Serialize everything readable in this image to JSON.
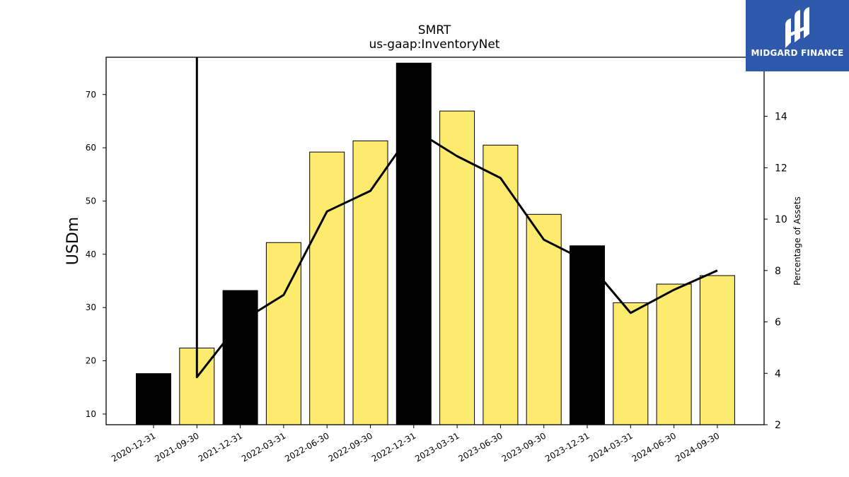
{
  "colors": {
    "bar_default": "#fdeb70",
    "bar_highlight": "#000000",
    "line": "#000000",
    "logo_bg": "#2f5aab"
  },
  "logo": {
    "text": "MIDGARD FINANCE",
    "icon": "midgard-logo-icon"
  },
  "chart_data": {
    "type": "bar",
    "title": "SMRT",
    "subtitle": "us-gaap:InventoryNet",
    "ylabel": "USDm",
    "y2label": "Percentage of Assets",
    "ylim": [
      8,
      77
    ],
    "y2lim": [
      2,
      16.3
    ],
    "yticks": [
      10,
      20,
      30,
      40,
      50,
      60,
      70
    ],
    "y2ticks": [
      2,
      4,
      6,
      8,
      10,
      12,
      14
    ],
    "categories": [
      "2020-12-31",
      "2021-09-30",
      "2021-12-31",
      "2022-03-31",
      "2022-06-30",
      "2022-09-30",
      "2022-12-31",
      "2023-03-31",
      "2023-06-30",
      "2023-09-30",
      "2023-12-31",
      "2024-03-31",
      "2024-06-30",
      "2024-09-30"
    ],
    "values": [
      17.6,
      22.4,
      33.2,
      42.2,
      59.2,
      61.3,
      75.9,
      66.9,
      60.5,
      47.5,
      41.6,
      30.9,
      34.4,
      36.0
    ],
    "highlight": [
      true,
      false,
      true,
      false,
      false,
      false,
      true,
      false,
      false,
      false,
      true,
      false,
      false,
      false
    ],
    "series": [
      {
        "type": "line",
        "axis": "right",
        "values": [
          null,
          3.85,
          6.0,
          7.05,
          10.3,
          11.1,
          13.5,
          12.45,
          11.6,
          9.2,
          8.35,
          6.35,
          7.25,
          8.0
        ]
      }
    ],
    "line_start_above_axis": true,
    "grid": false,
    "legend": "none"
  }
}
